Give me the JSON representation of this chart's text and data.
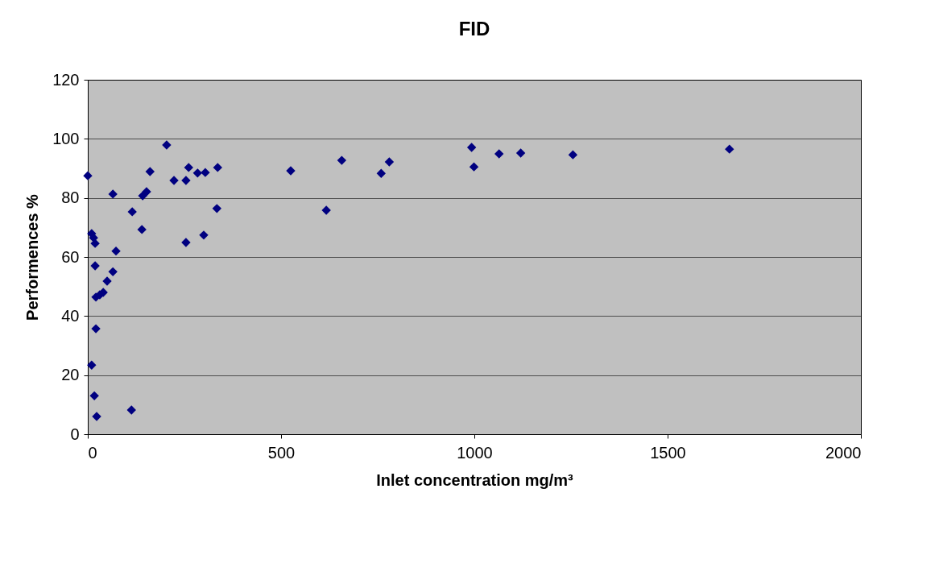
{
  "chart_data": {
    "type": "scatter",
    "title": "FID",
    "xlabel": "Inlet concentration mg/m³",
    "ylabel": "Performences %",
    "x": [
      0,
      10,
      15,
      19,
      19,
      73,
      50,
      65,
      21,
      31,
      40,
      21,
      10,
      17,
      23,
      113,
      65,
      115,
      140,
      142,
      152,
      161,
      204,
      223,
      254,
      261,
      284,
      304,
      336,
      334,
      254,
      300,
      525,
      617,
      657,
      759,
      780,
      993,
      999,
      1064,
      1120,
      1255,
      1660
    ],
    "series": [
      {
        "color": "#000080",
        "values": [
          87.5,
          67.9,
          66.5,
          64.6,
          57,
          62,
          51.8,
          55,
          46.4,
          47.2,
          48,
          35.7,
          23.4,
          13,
          6,
          8.2,
          81.3,
          75.3,
          69.3,
          80.7,
          82.1,
          88.9,
          97.9,
          85.9,
          85.9,
          90.3,
          88.4,
          88.6,
          90.3,
          76.4,
          64.9,
          67.4,
          89.2,
          75.8,
          92.7,
          88.3,
          92.2,
          97.1,
          90.5,
          94.9,
          95.2,
          94.6,
          96.5
        ]
      }
    ],
    "xlim": [
      0,
      2000
    ],
    "xticks": [
      0,
      500,
      1000,
      1500,
      2000
    ],
    "ylim": [
      0,
      120
    ],
    "yticks": [
      0,
      20,
      40,
      60,
      80,
      100,
      120
    ],
    "grid": "y",
    "marker": "diamond"
  }
}
